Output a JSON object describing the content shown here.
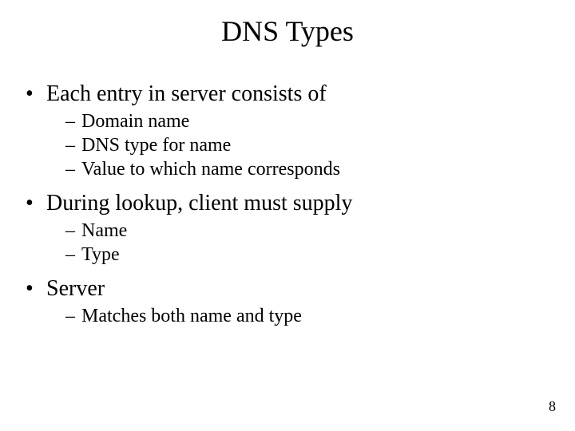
{
  "title": "DNS Types",
  "bullets": {
    "b0": {
      "text": "Each entry in server consists of",
      "sub": [
        "Domain name",
        "DNS type for name",
        "Value to which name corresponds"
      ]
    },
    "b1": {
      "text": "During lookup, client must supply",
      "sub": [
        "Name",
        "Type"
      ]
    },
    "b2": {
      "text": "Server",
      "sub": [
        "Matches both name and type"
      ]
    }
  },
  "page_number": "8",
  "style": {
    "background_color": "#ffffff",
    "text_color": "#000000",
    "font_family": "Times New Roman",
    "title_fontsize": 36,
    "lvl1_fontsize": 28,
    "lvl2_fontsize": 24,
    "pagenum_fontsize": 18,
    "lvl1_marker": "•",
    "lvl2_marker": "–"
  }
}
